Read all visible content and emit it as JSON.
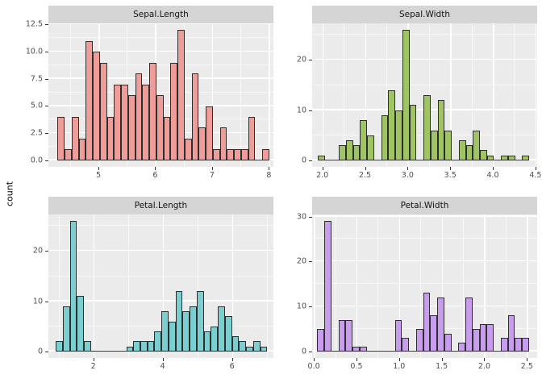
{
  "y_axis_title": "count",
  "colors": {
    "panel_background": "#EBEBEB",
    "strip_background": "#D5D5D5",
    "gridline": "#FFFFFF",
    "bar_outline": "#2E2E2E",
    "tick_label": "#4D4D4D",
    "strip_text": "#141414",
    "sepal_length_fill": "#EF9D98",
    "sepal_width_fill": "#9EC464",
    "petal_length_fill": "#7BCFD0",
    "petal_width_fill": "#C99DEE"
  },
  "chart_data": [
    {
      "type": "bar",
      "subtype": "histogram",
      "title": "Sepal.Length",
      "fill": "#EF9D98",
      "bin_start": 4.2828,
      "binwidth": 0.124138,
      "bins": [
        4,
        1,
        4,
        2,
        11,
        10,
        9,
        4,
        7,
        7,
        6,
        8,
        7,
        9,
        6,
        4,
        9,
        12,
        2,
        8,
        3,
        5,
        1,
        3,
        1,
        1,
        1,
        4,
        0,
        1
      ],
      "x_view": [
        4.12,
        8.08
      ],
      "x_major": [
        5,
        6,
        7,
        8
      ],
      "x_tick_labels": [
        "5",
        "6",
        "7",
        "8"
      ],
      "x_minor": [
        4.5,
        5.5,
        6.5,
        7.5
      ],
      "y_view": [
        -0.6,
        12.6
      ],
      "y_major": [
        0,
        2.5,
        5,
        7.5,
        10,
        12.5
      ],
      "y_tick_labels": [
        "0.0",
        "2.5",
        "5.0",
        "7.5",
        "10.0",
        "12.5"
      ],
      "y_minor": [
        1.25,
        3.75,
        6.25,
        8.75,
        11.25
      ],
      "grid": true,
      "legend": false
    },
    {
      "type": "bar",
      "subtype": "histogram",
      "title": "Sepal.Width",
      "fill": "#9EC464",
      "bin_start": 1.944828,
      "binwidth": 0.082759,
      "bins": [
        1,
        0,
        0,
        3,
        4,
        3,
        8,
        5,
        0,
        9,
        14,
        10,
        26,
        11,
        0,
        13,
        6,
        12,
        6,
        0,
        4,
        3,
        6,
        2,
        1,
        0,
        1,
        1,
        0,
        1
      ],
      "x_view": [
        1.88,
        4.52
      ],
      "x_major": [
        2.0,
        2.5,
        3.0,
        3.5,
        4.0,
        4.5
      ],
      "x_tick_labels": [
        "2.0",
        "2.5",
        "3.0",
        "3.5",
        "4.0",
        "4.5"
      ],
      "x_minor": [
        2.25,
        2.75,
        3.25,
        3.75,
        4.25
      ],
      "y_view": [
        -1.3,
        27.3
      ],
      "y_major": [
        0,
        10,
        20
      ],
      "y_tick_labels": [
        "0",
        "10",
        "20"
      ],
      "y_minor": [
        5,
        15,
        25
      ],
      "grid": true,
      "legend": false
    },
    {
      "type": "bar",
      "subtype": "histogram",
      "title": "Petal.Length",
      "fill": "#7BCFD0",
      "bin_start": 0.915517,
      "binwidth": 0.203448,
      "bins": [
        2,
        9,
        26,
        11,
        2,
        0,
        0,
        0,
        0,
        0,
        1,
        2,
        2,
        2,
        4,
        8,
        6,
        12,
        8,
        9,
        12,
        4,
        5,
        9,
        7,
        3,
        2,
        1,
        2,
        1
      ],
      "x_view": [
        0.705,
        7.195
      ],
      "x_major": [
        2,
        4,
        6
      ],
      "x_tick_labels": [
        "2",
        "4",
        "6"
      ],
      "x_minor": [
        1,
        3,
        5,
        7
      ],
      "y_view": [
        -1.3,
        27.3
      ],
      "y_major": [
        0,
        10,
        20
      ],
      "y_tick_labels": [
        "0",
        "10",
        "20"
      ],
      "y_minor": [
        5,
        15,
        25
      ],
      "grid": true,
      "legend": false
    },
    {
      "type": "bar",
      "subtype": "histogram",
      "title": "Petal.Width",
      "fill": "#C99DEE",
      "bin_start": 0.04138,
      "binwidth": 0.082759,
      "bins": [
        5,
        29,
        0,
        7,
        7,
        1,
        1,
        0,
        0,
        0,
        0,
        7,
        3,
        0,
        5,
        13,
        8,
        12,
        4,
        0,
        2,
        12,
        5,
        6,
        6,
        0,
        3,
        8,
        3,
        3
      ],
      "x_view": [
        -0.02,
        2.62
      ],
      "x_major": [
        0.0,
        0.5,
        1.0,
        1.5,
        2.0,
        2.5
      ],
      "x_tick_labels": [
        "0.0",
        "0.5",
        "1.0",
        "1.5",
        "2.0",
        "2.5"
      ],
      "x_minor": [
        0.25,
        0.75,
        1.25,
        1.75,
        2.25
      ],
      "y_view": [
        -1.45,
        30.45
      ],
      "y_major": [
        0,
        10,
        20,
        30
      ],
      "y_tick_labels": [
        "0",
        "10",
        "20",
        "30"
      ],
      "y_minor": [
        5,
        15,
        25
      ],
      "grid": true,
      "legend": false
    }
  ]
}
